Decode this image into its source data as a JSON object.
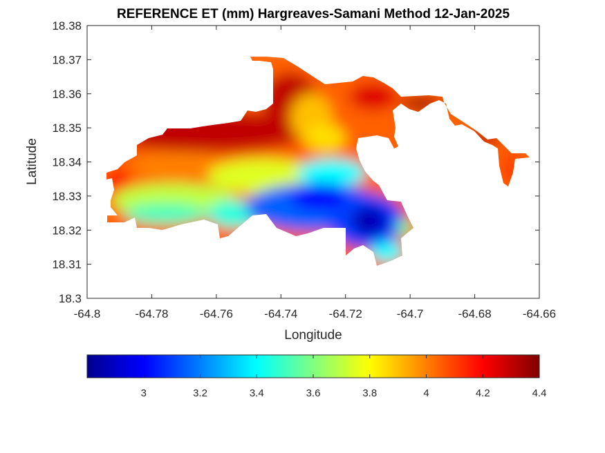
{
  "chart_data": {
    "type": "heatmap",
    "title": "REFERENCE ET (mm) Hargreaves-Samani Method  12-Jan-2025",
    "xlabel": "Longitude",
    "ylabel": "Latitude",
    "xlim": [
      -64.8,
      -64.66
    ],
    "ylim": [
      18.3,
      18.38
    ],
    "xticks": [
      "-64.8",
      "-64.78",
      "-64.76",
      "-64.74",
      "-64.72",
      "-64.7",
      "-64.68",
      "-64.66"
    ],
    "yticks": [
      "18.3",
      "18.31",
      "18.32",
      "18.33",
      "18.34",
      "18.35",
      "18.36",
      "18.37",
      "18.38"
    ],
    "colormap": "jet",
    "colorbar": {
      "orientation": "horizontal",
      "range": [
        2.8,
        4.4
      ],
      "ticks": [
        "3",
        "3.2",
        "3.4",
        "3.6",
        "3.8",
        "4",
        "4.2",
        "4.4"
      ]
    },
    "approx_features": [
      {
        "lon": -64.711,
        "lat": 18.323,
        "value": 2.85,
        "note": "minimum near south-east coast"
      },
      {
        "lon": -64.728,
        "lat": 18.328,
        "value": 3.0
      },
      {
        "lon": -64.728,
        "lat": 18.353,
        "value": 3.85,
        "note": "local high-yellow band"
      },
      {
        "lon": -64.752,
        "lat": 18.352,
        "value": 4.35
      },
      {
        "lon": -64.793,
        "lat": 18.332,
        "value": 4.25
      },
      {
        "lon": -64.695,
        "lat": 18.358,
        "value": 4.35
      },
      {
        "lon": -64.672,
        "lat": 18.338,
        "value": 4.1
      }
    ]
  }
}
